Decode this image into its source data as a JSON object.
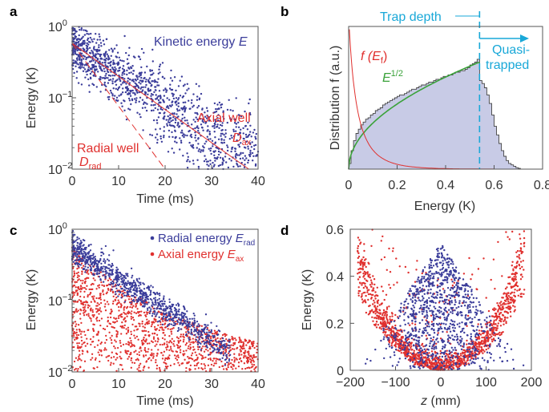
{
  "colors": {
    "blue": "#3a3c9a",
    "red": "#e0302e",
    "green": "#3aa23a",
    "cyan": "#19a8d8",
    "fill": "#c8cbe6",
    "axis": "#555555"
  },
  "chart_data": [
    {
      "panel": "a",
      "type": "scatter",
      "xlabel": "Time (ms)",
      "ylabel": "Energy (K)",
      "xlim": [
        0,
        40
      ],
      "ylim": [
        0.01,
        1
      ],
      "yscale": "log",
      "xticks": [
        "0",
        "10",
        "20",
        "30",
        "40"
      ],
      "yticks": [
        {
          "base": "10",
          "exp": "0"
        },
        {
          "base": "10",
          "exp": "−1"
        },
        {
          "base": "10",
          "exp": "−2"
        }
      ],
      "series_label": {
        "text": "Kinetic energy ",
        "var": "E"
      },
      "scatter_model": {
        "n": 1300,
        "e0": 0.55,
        "tau_min": 7,
        "tau_max": 14,
        "jitter": 0.18,
        "tmax": 40
      },
      "axial_well": {
        "label": "Axial well",
        "symbol": "D",
        "sub": "ax",
        "line": [
          [
            0,
            0.58
          ],
          [
            38,
            0.01
          ]
        ]
      },
      "radial_well": {
        "label": "Radial well",
        "symbol": "D",
        "sub": "rad",
        "line": [
          [
            0,
            0.58
          ],
          [
            20,
            0.01
          ]
        ]
      }
    },
    {
      "panel": "b",
      "type": "area",
      "xlabel": "Energy (K)",
      "ylabel": "Distribution f (a.u.)",
      "xlim": [
        0,
        0.8
      ],
      "ylim": [
        0,
        1
      ],
      "xticks": [
        "0",
        "0.2",
        "0.4",
        "0.6",
        "0.8"
      ],
      "histogram": {
        "bin_width": 0.01,
        "x_start": 0.0,
        "values": [
          0.04,
          0.13,
          0.2,
          0.25,
          0.28,
          0.31,
          0.33,
          0.35,
          0.36,
          0.38,
          0.39,
          0.41,
          0.42,
          0.43,
          0.45,
          0.46,
          0.47,
          0.48,
          0.49,
          0.5,
          0.51,
          0.52,
          0.52,
          0.53,
          0.54,
          0.55,
          0.56,
          0.56,
          0.57,
          0.58,
          0.59,
          0.59,
          0.6,
          0.61,
          0.61,
          0.62,
          0.63,
          0.63,
          0.64,
          0.65,
          0.65,
          0.66,
          0.66,
          0.67,
          0.68,
          0.68,
          0.69,
          0.69,
          0.7,
          0.71,
          0.73,
          0.74,
          0.75,
          0.77,
          0.62,
          0.6,
          0.57,
          0.52,
          0.46,
          0.38,
          0.3,
          0.24,
          0.18,
          0.13,
          0.09,
          0.06,
          0.04,
          0.03,
          0.02,
          0.01,
          0.005
        ]
      },
      "sqrt_fit": {
        "label_base": "E",
        "label_exp": "1/2",
        "amplitude": 1.0
      },
      "f_ef": {
        "label": "f (E",
        "sub": "f",
        "close": ")",
        "amplitude": 1.0,
        "decay": 0.04
      },
      "trap_depth": {
        "label": "Trap depth",
        "energy": 0.54
      },
      "quasi_trapped": {
        "line1": "Quasi-",
        "line2": "trapped"
      }
    },
    {
      "panel": "c",
      "type": "scatter",
      "xlabel": "Time (ms)",
      "ylabel": "Energy (K)",
      "xlim": [
        0,
        40
      ],
      "ylim": [
        0.01,
        1
      ],
      "yscale": "log",
      "xticks": [
        "0",
        "10",
        "20",
        "30",
        "40"
      ],
      "yticks": [
        {
          "base": "10",
          "exp": "0"
        },
        {
          "base": "10",
          "exp": "−1"
        },
        {
          "base": "10",
          "exp": "−2"
        }
      ],
      "series": [
        {
          "name": "Radial energy",
          "var": "E",
          "sub": "rad",
          "color": "#3a3c9a",
          "n": 1000,
          "e0": 0.55,
          "tau": 10,
          "jitter": 0.1
        },
        {
          "name": "Axial energy",
          "var": "E",
          "sub": "ax",
          "color": "#e0302e",
          "n": 1300,
          "tmax": 40
        }
      ]
    },
    {
      "panel": "d",
      "type": "scatter",
      "xlabel_var": "z",
      "xlabel_unit": " (mm)",
      "ylabel": "Energy (K)",
      "xlim": [
        -200,
        200
      ],
      "ylim": [
        0,
        0.6
      ],
      "xticks": [
        "−200",
        "−100",
        "0",
        "100",
        "200"
      ],
      "yticks": [
        "0",
        "0.2",
        "0.4",
        "0.6"
      ],
      "series": [
        {
          "name": "Radial energy",
          "color": "#3a3c9a",
          "n": 1000
        },
        {
          "name": "Axial energy",
          "color": "#e0302e",
          "n": 1500
        }
      ]
    }
  ]
}
